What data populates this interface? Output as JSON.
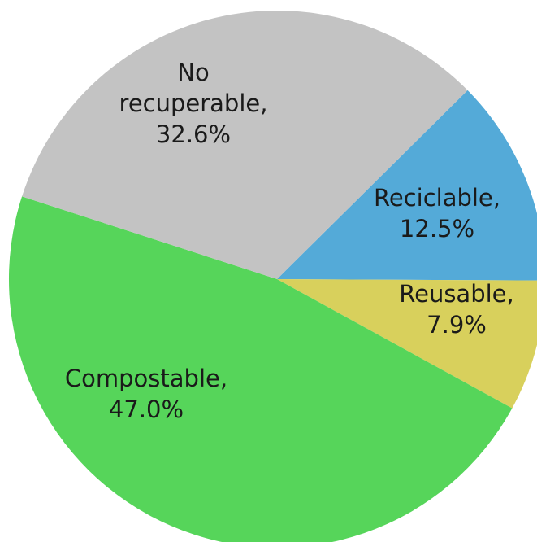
{
  "chart_data": {
    "type": "pie",
    "title": "",
    "start_angle_deg": -44.7,
    "direction": "clockwise",
    "slices": [
      {
        "label": "Reciclable,",
        "value_text": "12.5%",
        "value": 12.5,
        "color": "#54aad8"
      },
      {
        "label": "Reusable,",
        "value_text": "7.9%",
        "value": 7.9,
        "color": "#d8d05c"
      },
      {
        "label": "Compostable,",
        "value_text": "47.0%",
        "value": 47.0,
        "color": "#56d55a"
      },
      {
        "label": "No recuperable,",
        "value_text": "32.6%",
        "value": 32.6,
        "color": "#c3c3c3"
      }
    ]
  }
}
